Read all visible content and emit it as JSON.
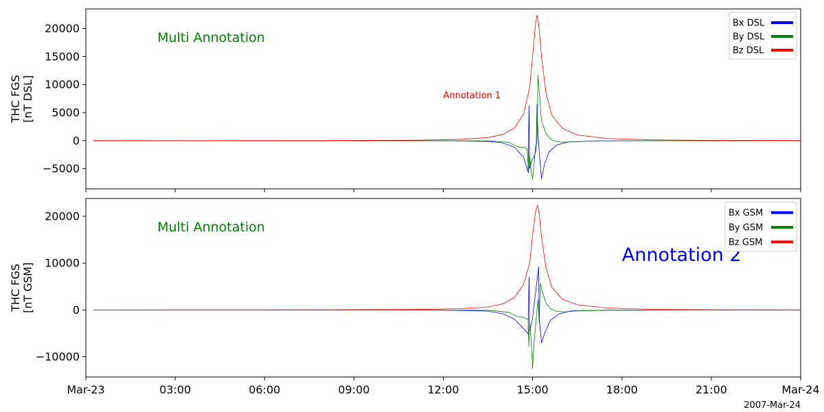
{
  "figure": {
    "date_label": "2007-Mar-24",
    "x_tick_labels": [
      "Mar-23",
      "03:00",
      "06:00",
      "09:00",
      "12:00",
      "15:00",
      "18:00",
      "21:00",
      "Mar-24"
    ],
    "colors": {
      "bx": "#0000ff",
      "by": "#008000",
      "bz": "#ff0000",
      "multi": "#008000",
      "ann1": "#ff0000",
      "ann2": "#0000ff"
    }
  },
  "chart_data": [
    {
      "type": "line",
      "panel": "top",
      "ylabel": [
        "THC FGS",
        "[nT DSL]"
      ],
      "xlim_hours": [
        0,
        24
      ],
      "ylim": [
        -8600,
        23500
      ],
      "yticks": [
        -5000,
        0,
        5000,
        10000,
        15000,
        20000
      ],
      "ytick_labels": [
        "−5000",
        "0",
        "5000",
        "10000",
        "15000",
        "20000"
      ],
      "legend": {
        "placement": "top-right",
        "entries": [
          "Bx DSL",
          "By DSL",
          "Bz DSL"
        ]
      },
      "annotations": [
        {
          "text": "Multi Annotation",
          "x_hour": 2.4,
          "y": 17600,
          "color": "#008000",
          "size": "medium"
        },
        {
          "text": "Annotation 1",
          "x_hour": 12.0,
          "y": 7600,
          "color": "#ff0000",
          "size": "small"
        }
      ],
      "series": [
        {
          "name": "Bx DSL",
          "color": "#0000ff",
          "points": [
            [
              0.25,
              0
            ],
            [
              12.0,
              -20
            ],
            [
              13.5,
              -120
            ],
            [
              14.0,
              -400
            ],
            [
              14.4,
              -1200
            ],
            [
              14.7,
              -3000
            ],
            [
              14.85,
              -5600
            ],
            [
              14.88,
              6200
            ],
            [
              14.9,
              -5000
            ],
            [
              14.98,
              -3500
            ],
            [
              15.08,
              -2500
            ],
            [
              15.12,
              -1500
            ],
            [
              15.15,
              6500
            ],
            [
              15.18,
              1500
            ],
            [
              15.22,
              -2000
            ],
            [
              15.3,
              -6800
            ],
            [
              15.4,
              -4200
            ],
            [
              15.55,
              -2000
            ],
            [
              15.8,
              -800
            ],
            [
              16.2,
              -250
            ],
            [
              17.0,
              -60
            ],
            [
              18.5,
              -10
            ],
            [
              24,
              0
            ]
          ]
        },
        {
          "name": "By DSL",
          "color": "#008000",
          "points": [
            [
              0.25,
              0
            ],
            [
              13.5,
              -30
            ],
            [
              14.2,
              -300
            ],
            [
              14.5,
              -1100
            ],
            [
              14.7,
              -1200
            ],
            [
              14.82,
              -1500
            ],
            [
              14.86,
              -5800
            ],
            [
              14.9,
              -2400
            ],
            [
              14.95,
              -5500
            ],
            [
              15.0,
              -6900
            ],
            [
              15.05,
              -4000
            ],
            [
              15.1,
              -1000
            ],
            [
              15.15,
              -500
            ],
            [
              15.18,
              11700
            ],
            [
              15.22,
              9000
            ],
            [
              15.3,
              3500
            ],
            [
              15.45,
              1300
            ],
            [
              15.6,
              300
            ],
            [
              15.75,
              -100
            ],
            [
              16.0,
              -300
            ],
            [
              16.4,
              -200
            ],
            [
              17.0,
              -70
            ],
            [
              18.5,
              -20
            ],
            [
              24,
              0
            ]
          ]
        },
        {
          "name": "Bz DSL",
          "color": "#ff0000",
          "points": [
            [
              0.25,
              0
            ],
            [
              8.0,
              20
            ],
            [
              11.0,
              80
            ],
            [
              12.5,
              200
            ],
            [
              13.5,
              550
            ],
            [
              14.0,
              1100
            ],
            [
              14.4,
              2300
            ],
            [
              14.7,
              4800
            ],
            [
              14.9,
              9500
            ],
            [
              15.0,
              15000
            ],
            [
              15.1,
              21000
            ],
            [
              15.15,
              22400
            ],
            [
              15.2,
              21000
            ],
            [
              15.3,
              15000
            ],
            [
              15.45,
              8500
            ],
            [
              15.65,
              4500
            ],
            [
              16.0,
              2200
            ],
            [
              16.5,
              1000
            ],
            [
              17.5,
              380
            ],
            [
              19.0,
              130
            ],
            [
              21.0,
              50
            ],
            [
              24,
              10
            ]
          ]
        }
      ]
    },
    {
      "type": "line",
      "panel": "bottom",
      "ylabel": [
        "THC FGS",
        "[nT GSM]"
      ],
      "xlim_hours": [
        0,
        24
      ],
      "ylim": [
        -14300,
        23800
      ],
      "yticks": [
        -10000,
        0,
        10000,
        20000
      ],
      "ytick_labels": [
        "−10000",
        "0",
        "10000",
        "20000"
      ],
      "legend": {
        "placement": "top-right",
        "entries": [
          "Bx GSM",
          "By GSM",
          "Bz GSM"
        ]
      },
      "annotations": [
        {
          "text": "Multi Annotation",
          "x_hour": 2.4,
          "y": 16800,
          "color": "#008000",
          "size": "medium"
        },
        {
          "text": "Annotation 2",
          "x_hour": 18.0,
          "y": 10500,
          "color": "#0000ff",
          "size": "large"
        }
      ],
      "series": [
        {
          "name": "Bx GSM",
          "color": "#0000ff",
          "points": [
            [
              0.25,
              0
            ],
            [
              12.0,
              -40
            ],
            [
              13.5,
              -250
            ],
            [
              14.0,
              -800
            ],
            [
              14.4,
              -2000
            ],
            [
              14.7,
              -4000
            ],
            [
              14.85,
              -5100
            ],
            [
              14.88,
              7000
            ],
            [
              14.9,
              -4500
            ],
            [
              14.98,
              -2500
            ],
            [
              15.05,
              1000
            ],
            [
              15.15,
              6400
            ],
            [
              15.2,
              9200
            ],
            [
              15.22,
              -1500
            ],
            [
              15.3,
              -7000
            ],
            [
              15.4,
              -5000
            ],
            [
              15.6,
              -2200
            ],
            [
              15.9,
              -800
            ],
            [
              16.3,
              -200
            ],
            [
              17.5,
              -40
            ],
            [
              24,
              0
            ]
          ]
        },
        {
          "name": "By GSM",
          "color": "#008000",
          "points": [
            [
              0.25,
              0
            ],
            [
              13.5,
              -50
            ],
            [
              14.2,
              -500
            ],
            [
              14.5,
              -1400
            ],
            [
              14.7,
              -1600
            ],
            [
              14.85,
              -2000
            ],
            [
              14.87,
              -7800
            ],
            [
              14.9,
              -2500
            ],
            [
              14.95,
              -6500
            ],
            [
              15.0,
              -12500
            ],
            [
              15.05,
              -7000
            ],
            [
              15.12,
              -2000
            ],
            [
              15.18,
              2200
            ],
            [
              15.22,
              -2800
            ],
            [
              15.26,
              5700
            ],
            [
              15.32,
              4000
            ],
            [
              15.45,
              1500
            ],
            [
              15.6,
              300
            ],
            [
              15.8,
              -300
            ],
            [
              16.1,
              -400
            ],
            [
              16.5,
              -200
            ],
            [
              17.5,
              -60
            ],
            [
              24,
              0
            ]
          ]
        },
        {
          "name": "Bz GSM",
          "color": "#ff0000",
          "points": [
            [
              0.25,
              0
            ],
            [
              8.0,
              30
            ],
            [
              11.0,
              100
            ],
            [
              12.5,
              250
            ],
            [
              13.5,
              650
            ],
            [
              14.0,
              1300
            ],
            [
              14.4,
              2700
            ],
            [
              14.7,
              5500
            ],
            [
              14.9,
              10000
            ],
            [
              15.0,
              16000
            ],
            [
              15.1,
              21000
            ],
            [
              15.17,
              22400
            ],
            [
              15.22,
              20500
            ],
            [
              15.3,
              15500
            ],
            [
              15.45,
              9000
            ],
            [
              15.65,
              4800
            ],
            [
              16.0,
              2300
            ],
            [
              16.5,
              1100
            ],
            [
              17.5,
              420
            ],
            [
              19.0,
              140
            ],
            [
              21.0,
              50
            ],
            [
              24,
              10
            ]
          ]
        }
      ]
    }
  ]
}
